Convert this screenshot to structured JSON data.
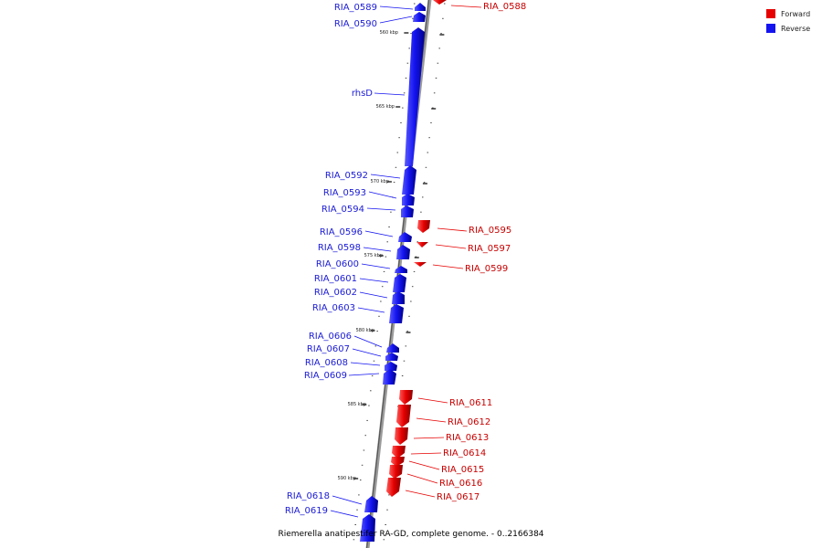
{
  "legend": {
    "forward": {
      "label": "Forward",
      "color": "#e60000"
    },
    "reverse": {
      "label": "Reverse",
      "color": "#1414f0"
    }
  },
  "caption": "Riemerella anatipestifer RA-GD, complete genome. - 0..2166384",
  "scale_labels": [
    "560 kbp",
    "565 kbp",
    "570 kbp",
    "575 kbp",
    "580 kbp",
    "585 kbp",
    "590 kbp"
  ],
  "genes": [
    {
      "name": "RIA_0588",
      "strand": "forward"
    },
    {
      "name": "RIA_0589",
      "strand": "reverse"
    },
    {
      "name": "RIA_0590",
      "strand": "reverse"
    },
    {
      "name": "rhsD",
      "strand": "reverse"
    },
    {
      "name": "RIA_0592",
      "strand": "reverse"
    },
    {
      "name": "RIA_0593",
      "strand": "reverse"
    },
    {
      "name": "RIA_0594",
      "strand": "reverse"
    },
    {
      "name": "RIA_0595",
      "strand": "forward"
    },
    {
      "name": "RIA_0596",
      "strand": "reverse"
    },
    {
      "name": "RIA_0597",
      "strand": "forward"
    },
    {
      "name": "RIA_0598",
      "strand": "reverse"
    },
    {
      "name": "RIA_0599",
      "strand": "forward"
    },
    {
      "name": "RIA_0600",
      "strand": "reverse"
    },
    {
      "name": "RIA_0601",
      "strand": "reverse"
    },
    {
      "name": "RIA_0602",
      "strand": "reverse"
    },
    {
      "name": "RIA_0603",
      "strand": "reverse"
    },
    {
      "name": "RIA_0606",
      "strand": "reverse"
    },
    {
      "name": "RIA_0607",
      "strand": "reverse"
    },
    {
      "name": "RIA_0608",
      "strand": "reverse"
    },
    {
      "name": "RIA_0609",
      "strand": "reverse"
    },
    {
      "name": "RIA_0611",
      "strand": "forward"
    },
    {
      "name": "RIA_0612",
      "strand": "forward"
    },
    {
      "name": "RIA_0613",
      "strand": "forward"
    },
    {
      "name": "RIA_0614",
      "strand": "forward"
    },
    {
      "name": "RIA_0615",
      "strand": "forward"
    },
    {
      "name": "RIA_0616",
      "strand": "forward"
    },
    {
      "name": "RIA_0617",
      "strand": "forward"
    },
    {
      "name": "RIA_0618",
      "strand": "reverse"
    },
    {
      "name": "RIA_0619",
      "strand": "reverse"
    }
  ]
}
